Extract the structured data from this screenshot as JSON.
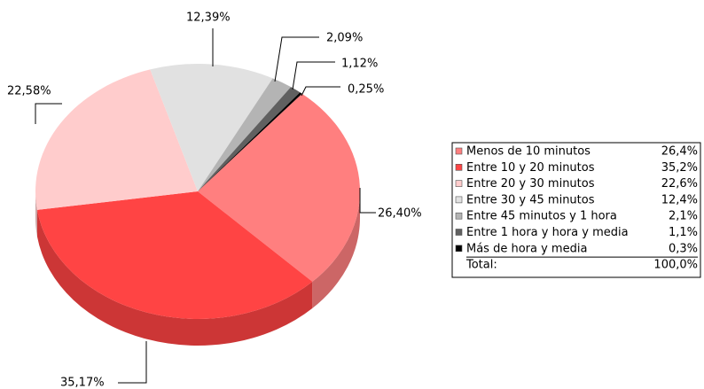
{
  "chart_data": {
    "type": "pie",
    "categories": [
      "Menos de 10 minutos",
      "Entre 10 y 20 minutos",
      "Entre 20 y 30 minutos",
      "Entre 30 y 45 minutos",
      "Entre 45 minutos y 1 hora",
      "Entre 1 hora y hora y media",
      "Más de hora y media"
    ],
    "values": [
      26.4,
      35.17,
      22.58,
      12.39,
      2.09,
      1.12,
      0.25
    ],
    "value_labels": [
      "26,40%",
      "35,17%",
      "22,58%",
      "12,39%",
      "2,09%",
      "1,12%",
      "0,25%"
    ],
    "legend_labels": [
      "26,4%",
      "35,2%",
      "22,6%",
      "12,4%",
      "2,1%",
      "1,1%",
      "0,3%"
    ],
    "colors": [
      "#ff7f7f",
      "#ff4444",
      "#ffcccc",
      "#e1e1e1",
      "#b4b4b4",
      "#606060",
      "#000000"
    ],
    "total": {
      "label": "Total:",
      "value": 100,
      "value_label": "100,0%"
    }
  }
}
